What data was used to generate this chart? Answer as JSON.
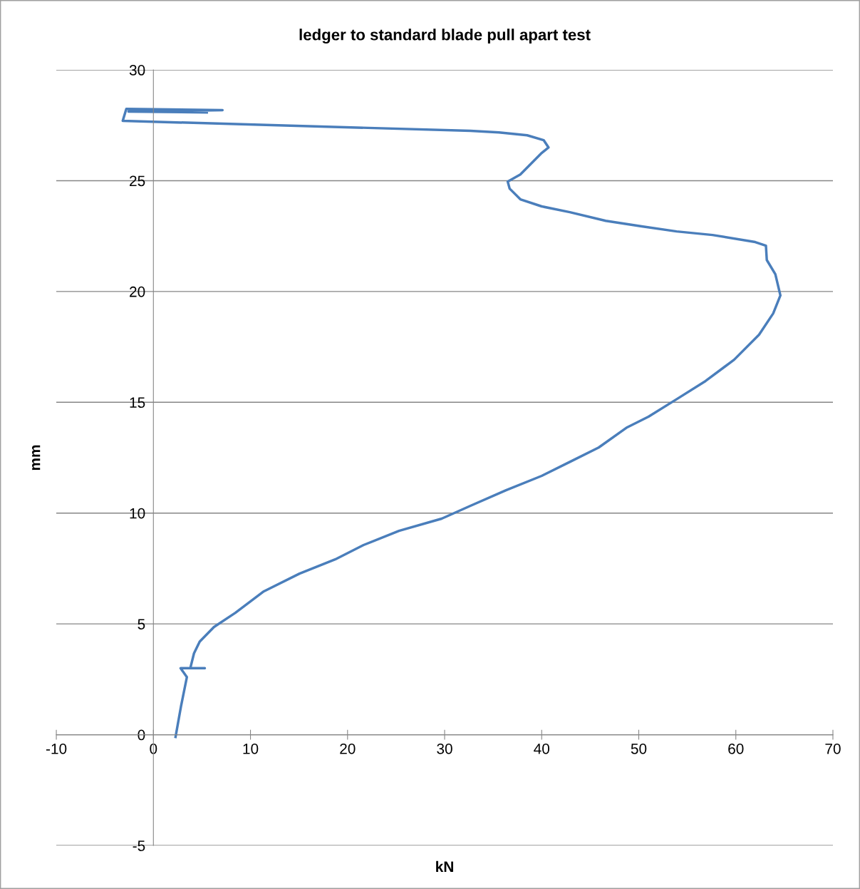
{
  "chart_data": {
    "type": "line",
    "title": "ledger to standard blade pull apart test",
    "xlabel": "kN",
    "ylabel": "mm",
    "xlim": [
      -10,
      70
    ],
    "xticks": [
      -10,
      0,
      10,
      20,
      30,
      40,
      50,
      60,
      70
    ],
    "ylim": [
      -5,
      30
    ],
    "yticks": [
      -5,
      0,
      5,
      10,
      15,
      20,
      25,
      30
    ],
    "grid": "y",
    "marker": "none",
    "line_style": "solid",
    "series": [
      {
        "color": "#4a7ebb",
        "x": [
          2.28,
          2.86,
          3.45,
          2.8,
          5.3,
          3.8,
          4.18,
          4.77,
          6.24,
          8.44,
          11.38,
          15.05,
          18.72,
          21.65,
          25.3,
          29.7,
          32.66,
          36.33,
          40.0,
          42.94,
          45.87,
          48.8,
          51.0,
          53.94,
          56.88,
          59.82,
          62.39,
          63.85,
          64.59,
          64.07,
          63.19,
          63.1,
          62.0,
          57.6,
          53.9,
          50.3,
          46.6,
          42.9,
          40.0,
          37.8,
          36.7,
          36.5,
          37.8,
          40.0,
          40.7,
          40.2,
          38.5,
          35.6,
          32.66,
          -3.16,
          -2.79,
          7.12,
          -2.57,
          5.5
        ],
        "values": [
          -0.1,
          1.32,
          2.6,
          3.0,
          3.0,
          3.0,
          3.67,
          4.2,
          4.86,
          5.5,
          6.47,
          7.27,
          7.91,
          8.56,
          9.2,
          9.75,
          10.33,
          11.03,
          11.68,
          12.32,
          12.96,
          13.87,
          14.35,
          15.15,
          15.96,
          16.92,
          18.05,
          19.01,
          19.82,
          20.78,
          21.42,
          22.07,
          22.23,
          22.55,
          22.71,
          22.94,
          23.19,
          23.58,
          23.84,
          24.16,
          24.64,
          24.96,
          25.28,
          26.25,
          26.5,
          26.83,
          27.05,
          27.18,
          27.25,
          27.7,
          28.24,
          28.18,
          28.12,
          28.08
        ]
      }
    ]
  }
}
